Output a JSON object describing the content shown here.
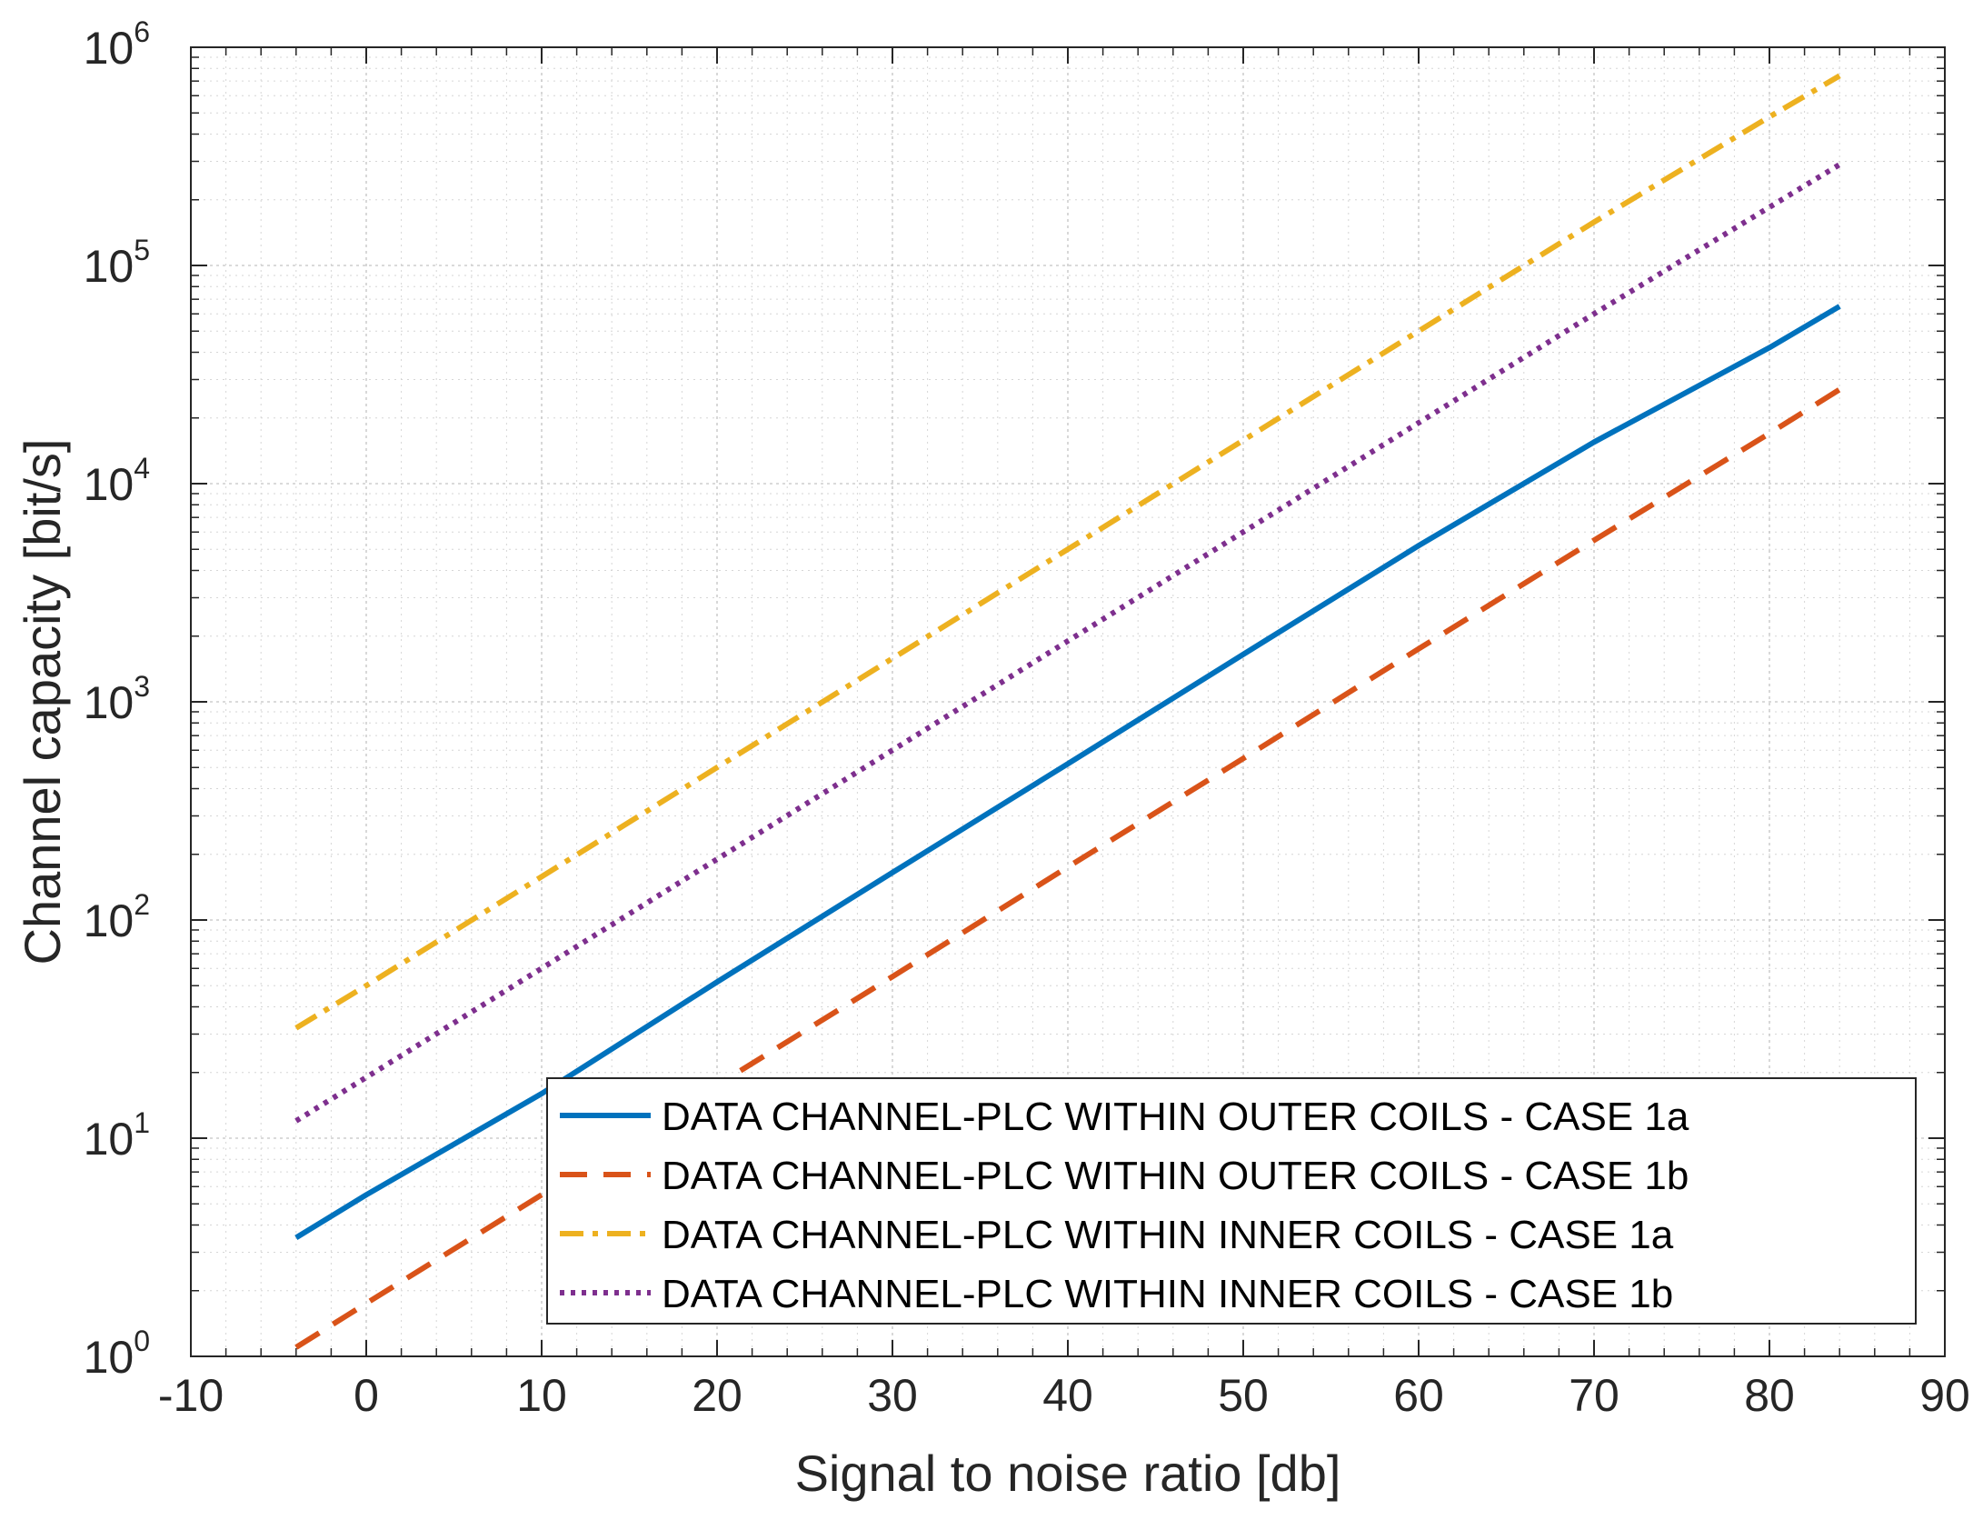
{
  "chart_data": {
    "type": "line",
    "title": "",
    "xlabel": "Signal to noise ratio [db]",
    "ylabel": "Channel capacity [bit/s]",
    "xlim": [
      -10,
      90
    ],
    "ylim": [
      1,
      1000000
    ],
    "yscale": "log",
    "grid": true,
    "minor_grid": true,
    "legend_position": "bottom-right",
    "x_ticks": [
      -10,
      0,
      10,
      20,
      30,
      40,
      50,
      60,
      70,
      80,
      90
    ],
    "x_tick_labels": [
      "-10",
      "0",
      "10",
      "20",
      "30",
      "40",
      "50",
      "60",
      "70",
      "80",
      "90"
    ],
    "y_ticks": [
      {
        "value": 1,
        "base": "10",
        "exp": "0"
      },
      {
        "value": 10,
        "base": "10",
        "exp": "1"
      },
      {
        "value": 100,
        "base": "10",
        "exp": "2"
      },
      {
        "value": 1000,
        "base": "10",
        "exp": "3"
      },
      {
        "value": 10000,
        "base": "10",
        "exp": "4"
      },
      {
        "value": 100000,
        "base": "10",
        "exp": "5"
      },
      {
        "value": 1000000,
        "base": "10",
        "exp": "6"
      }
    ],
    "series": [
      {
        "name": "DATA CHANNEL-PLC WITHIN OUTER COILS - CASE 1a",
        "color": "#0072BD",
        "dash": "solid",
        "x": [
          -4,
          0,
          10,
          20,
          30,
          40,
          50,
          60,
          70,
          80,
          84
        ],
        "y": [
          3.5,
          5.5,
          16,
          52,
          165,
          520,
          1650,
          5200,
          15500,
          42000,
          65000
        ]
      },
      {
        "name": "DATA CHANNEL-PLC WITHIN OUTER COILS - CASE 1b",
        "color": "#D95319",
        "dash": "dashed",
        "x": [
          -4,
          0,
          10,
          20,
          30,
          40,
          50,
          60,
          70,
          80,
          84
        ],
        "y": [
          1.1,
          1.75,
          5.5,
          17.5,
          55,
          175,
          550,
          1750,
          5500,
          17000,
          27000
        ]
      },
      {
        "name": "DATA CHANNEL-PLC WITHIN INNER COILS - CASE 1a",
        "color": "#EDB120",
        "dash": "dashdot",
        "x": [
          -4,
          0,
          10,
          20,
          30,
          40,
          50,
          60,
          70,
          80,
          84
        ],
        "y": [
          32,
          50,
          158,
          500,
          1580,
          5000,
          15800,
          50000,
          158000,
          480000,
          740000
        ]
      },
      {
        "name": "DATA CHANNEL-PLC WITHIN INNER COILS - CASE 1b",
        "color": "#7E2F8E",
        "dash": "dotted",
        "x": [
          -4,
          0,
          10,
          20,
          30,
          40,
          50,
          60,
          70,
          80,
          84
        ],
        "y": [
          12,
          19,
          60,
          190,
          600,
          1900,
          6000,
          19000,
          60000,
          185000,
          290000
        ]
      }
    ]
  }
}
